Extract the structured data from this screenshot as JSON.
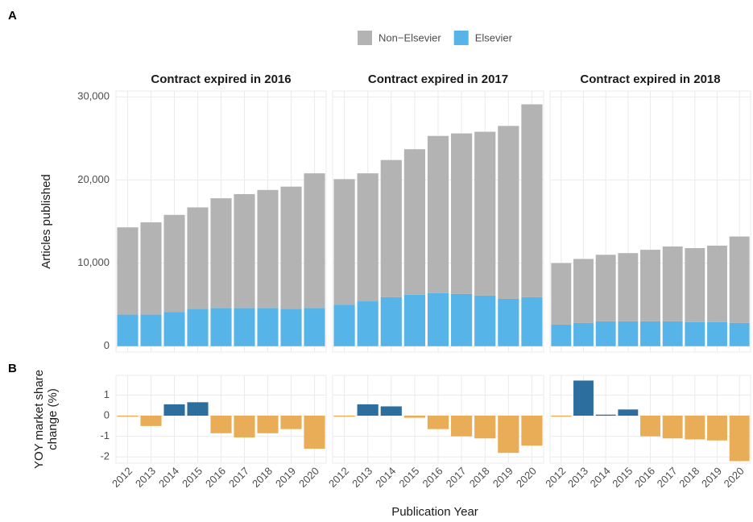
{
  "panel_labels": [
    "A",
    "B"
  ],
  "chart_data": [
    {
      "type": "stacked_bar",
      "title": "Contract expired in 2016",
      "ylabel": "Articles published",
      "legend": "top",
      "grid": true,
      "ylim": [
        -700,
        30700
      ],
      "yticks": [
        0,
        {
          "value": 10000,
          "label": "10,000"
        },
        {
          "value": 20000,
          "label": "20,000"
        },
        {
          "value": 30000,
          "label": "30,000"
        }
      ],
      "series": [
        {
          "name": "Non−Elsevier",
          "color": "#b3b3b3",
          "values": [
            10500,
            11100,
            11700,
            12200,
            13200,
            13700,
            14200,
            14700,
            16200
          ]
        },
        {
          "name": "Elsevier",
          "color": "#56b4e9",
          "values": [
            3800,
            3800,
            4100,
            4500,
            4600,
            4600,
            4600,
            4500,
            4600
          ]
        }
      ]
    },
    {
      "type": "stacked_bar",
      "title": "Contract expired in 2017",
      "series": [
        {
          "name": "Non−Elsevier",
          "color": "#b3b3b3",
          "values": [
            15100,
            15400,
            16500,
            17500,
            18900,
            19300,
            19700,
            20800,
            23200
          ]
        },
        {
          "name": "Elsevier",
          "color": "#56b4e9",
          "values": [
            5000,
            5400,
            5900,
            6200,
            6400,
            6300,
            6100,
            5700,
            5900
          ]
        }
      ]
    },
    {
      "type": "stacked_bar",
      "title": "Contract expired in 2018",
      "series": [
        {
          "name": "Non−Elsevier",
          "color": "#b3b3b3",
          "values": [
            7400,
            7700,
            8000,
            8200,
            8600,
            9000,
            8900,
            9200,
            10400
          ]
        },
        {
          "name": "Elsevier",
          "color": "#56b4e9",
          "values": [
            2600,
            2800,
            3000,
            3000,
            3000,
            3000,
            2900,
            2900,
            2800
          ]
        }
      ]
    },
    {
      "type": "bar",
      "ylabel": [
        "YOY market share",
        "change (%)"
      ],
      "grid": true,
      "positive_color": "#2c6f9f",
      "negative_color": "#e9ac57",
      "ylim": [
        -2.3,
        1.95
      ],
      "yticks": [
        -2,
        -1,
        0,
        1
      ],
      "categories": [
        "2012",
        "2013",
        "2014",
        "2015",
        "2016",
        "2017",
        "2018",
        "2019",
        "2020"
      ],
      "values": [
        -0.05,
        -0.5,
        0.55,
        0.65,
        -0.85,
        -1.05,
        -0.85,
        -0.65,
        -1.6
      ]
    },
    {
      "type": "bar",
      "xlabel": "Publication Year",
      "positive_color": "#2c6f9f",
      "negative_color": "#e9ac57",
      "categories": [
        "2012",
        "2013",
        "2014",
        "2015",
        "2016",
        "2017",
        "2018",
        "2019",
        "2020"
      ],
      "values": [
        -0.05,
        0.55,
        0.45,
        -0.1,
        -0.65,
        -1.0,
        -1.1,
        -1.8,
        -1.45
      ]
    },
    {
      "type": "bar",
      "positive_color": "#2c6f9f",
      "negative_color": "#e9ac57",
      "categories": [
        "2012",
        "2013",
        "2014",
        "2015",
        "2016",
        "2017",
        "2018",
        "2019",
        "2020"
      ],
      "values": [
        -0.05,
        1.7,
        0.05,
        0.3,
        -1.0,
        -1.1,
        -1.15,
        -1.2,
        -2.2
      ]
    }
  ]
}
